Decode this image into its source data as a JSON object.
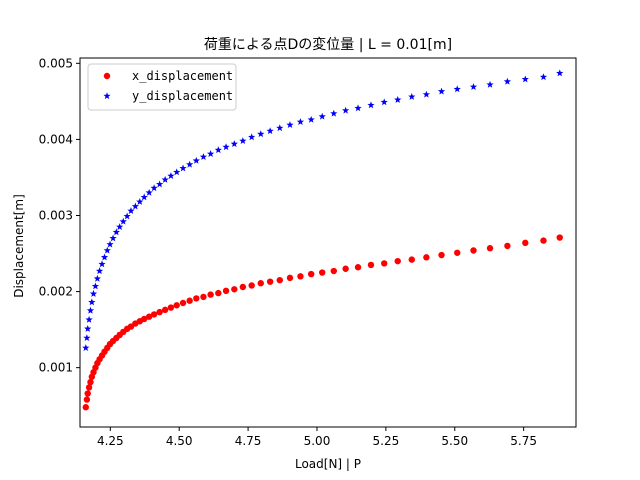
{
  "chart_data": {
    "type": "scatter",
    "title": "荷重による点Dの変位量 | L = 0.01[m]",
    "xlabel": "Load[N] | P",
    "ylabel": "Displacement[m]",
    "xlim": [
      4.14,
      5.94
    ],
    "ylim": [
      0.00022,
      0.00507
    ],
    "xticks": [
      4.25,
      4.5,
      4.75,
      5.0,
      5.25,
      5.5,
      5.75
    ],
    "xtick_labels": [
      "4.25",
      "4.50",
      "4.75",
      "5.00",
      "5.25",
      "5.50",
      "5.75"
    ],
    "yticks": [
      0.001,
      0.002,
      0.003,
      0.004,
      0.005
    ],
    "ytick_labels": [
      "0.001",
      "0.002",
      "0.003",
      "0.004",
      "0.005"
    ],
    "grid": false,
    "legend_position": "top-left",
    "colors": {
      "x_displacement": "#ff0000",
      "y_displacement": "#0000ff",
      "axes": "#000000"
    },
    "x": [
      4.161,
      4.165,
      4.168,
      4.173,
      4.178,
      4.183,
      4.189,
      4.196,
      4.203,
      4.211,
      4.22,
      4.229,
      4.239,
      4.249,
      4.26,
      4.272,
      4.284,
      4.297,
      4.311,
      4.325,
      4.341,
      4.357,
      4.373,
      4.391,
      4.409,
      4.429,
      4.449,
      4.47,
      4.491,
      4.514,
      4.538,
      4.562,
      4.588,
      4.614,
      4.642,
      4.67,
      4.7,
      4.731,
      4.763,
      4.796,
      4.83,
      4.865,
      4.902,
      4.94,
      4.979,
      5.019,
      5.061,
      5.104,
      5.149,
      5.196,
      5.244,
      5.293,
      5.344,
      5.397,
      5.452,
      5.509,
      5.568,
      5.628,
      5.691,
      5.756,
      5.822,
      5.881
    ],
    "series": [
      {
        "name": "x_displacement",
        "marker": "circle",
        "values": [
          0.00048,
          0.00058,
          0.00066,
          0.00074,
          0.00081,
          0.00088,
          0.00094,
          0.001,
          0.00106,
          0.00111,
          0.00116,
          0.00121,
          0.00126,
          0.00131,
          0.00135,
          0.00139,
          0.00143,
          0.00147,
          0.00151,
          0.00154,
          0.00158,
          0.00161,
          0.00164,
          0.00167,
          0.0017,
          0.00173,
          0.00176,
          0.00179,
          0.00182,
          0.00185,
          0.00188,
          0.00191,
          0.00193,
          0.00196,
          0.00198,
          0.00201,
          0.00203,
          0.00206,
          0.00208,
          0.00211,
          0.00213,
          0.00215,
          0.00218,
          0.0022,
          0.00223,
          0.00225,
          0.00227,
          0.0023,
          0.00232,
          0.00235,
          0.00237,
          0.0024,
          0.00242,
          0.00245,
          0.00248,
          0.00251,
          0.00254,
          0.00257,
          0.0026,
          0.00264,
          0.00267,
          0.00271
        ]
      },
      {
        "name": "y_displacement",
        "marker": "star",
        "values": [
          0.00126,
          0.00139,
          0.00151,
          0.00163,
          0.00175,
          0.00186,
          0.00197,
          0.00207,
          0.00217,
          0.00227,
          0.00236,
          0.00245,
          0.00254,
          0.00262,
          0.0027,
          0.00278,
          0.00285,
          0.00292,
          0.00299,
          0.00306,
          0.00312,
          0.00318,
          0.00324,
          0.0033,
          0.00336,
          0.00341,
          0.00347,
          0.00352,
          0.00357,
          0.00362,
          0.00367,
          0.00372,
          0.00377,
          0.00381,
          0.00386,
          0.0039,
          0.00394,
          0.00398,
          0.00403,
          0.00407,
          0.00411,
          0.00415,
          0.00419,
          0.00423,
          0.00426,
          0.0043,
          0.00434,
          0.00438,
          0.00441,
          0.00445,
          0.00449,
          0.00452,
          0.00456,
          0.00459,
          0.00463,
          0.00466,
          0.00469,
          0.00472,
          0.00476,
          0.00479,
          0.00482,
          0.00487
        ]
      }
    ]
  }
}
